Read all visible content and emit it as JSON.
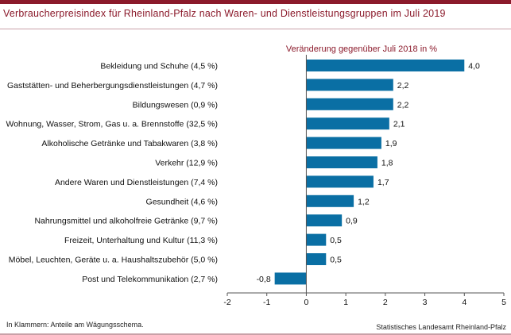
{
  "header": {
    "title": "Verbraucherpreisindex für Rheinland-Pfalz nach Waren- und Dienstleistungsgruppen im Juli 2019"
  },
  "footer": {
    "note": "In Klammern: Anteile am Wägungsschema.",
    "source": "Statistisches Landesamt Rheinland-Pfalz"
  },
  "colors": {
    "bar": "#0a6fa4",
    "accent": "#8b1a2b"
  },
  "chart_data": {
    "type": "bar",
    "orientation": "horizontal",
    "title": "Verbraucherpreisindex für Rheinland-Pfalz nach Waren- und Dienstleistungsgruppen im Juli 2019",
    "subtitle": "Veränderung gegenüber Juli 2018 in %",
    "categories": [
      "Bekleidung und Schuhe (4,5 %)",
      "Gaststätten- und Beherbergungsdienstleistungen (4,7 %)",
      "Bildungswesen (0,9 %)",
      "Wohnung, Wasser, Strom, Gas u. a. Brennstoffe (32,5 %)",
      "Alkoholische Getränke und Tabakwaren (3,8 %)",
      "Verkehr (12,9 %)",
      "Andere Waren und Dienstleistungen (7,4 %)",
      "Gesundheit (4,6 %)",
      "Nahrungsmittel und alkoholfreie Getränke (9,7 %)",
      "Freizeit, Unterhaltung und Kultur (11,3 %)",
      "Möbel, Leuchten, Geräte u. a. Haushaltszubehör (5,0 %)",
      "Post und Telekommunikation (2,7 %)"
    ],
    "values": [
      4.0,
      2.2,
      2.2,
      2.1,
      1.9,
      1.8,
      1.7,
      1.2,
      0.9,
      0.5,
      0.5,
      -0.8
    ],
    "value_labels": [
      "4,0",
      "2,2",
      "2,2",
      "2,1",
      "1,9",
      "1,8",
      "1,7",
      "1,2",
      "0,9",
      "0,5",
      "0,5",
      "-0,8"
    ],
    "xlim": [
      -2,
      5
    ],
    "xticks": [
      -2,
      -1,
      0,
      1,
      2,
      3,
      4,
      5
    ],
    "xlabel": "",
    "ylabel": "",
    "grid": false,
    "legend": "none"
  }
}
